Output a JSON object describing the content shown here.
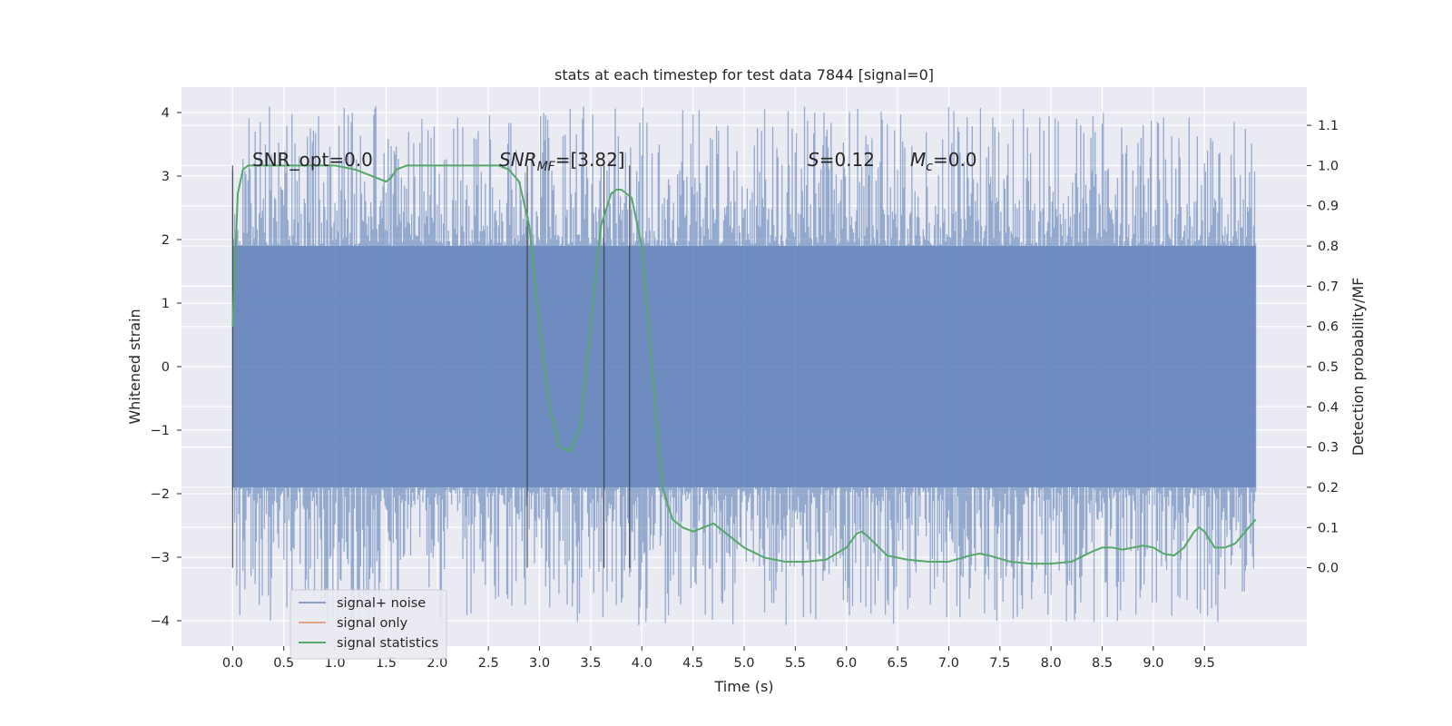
{
  "chart_data": {
    "type": "line",
    "title": "stats at each timestep for test data 7844 [signal=0]",
    "xlabel": "Time (s)",
    "ylabel": "Whitened strain",
    "y2label": "Detection probability/MF",
    "xlim": [
      -0.5,
      10.5
    ],
    "ylim": [
      -4.4,
      4.4
    ],
    "y2lim": [
      -0.195,
      1.195
    ],
    "x_ticks": [
      0.0,
      0.5,
      1.0,
      1.5,
      2.0,
      2.5,
      3.0,
      3.5,
      4.0,
      4.5,
      5.0,
      5.5,
      6.0,
      6.5,
      7.0,
      7.5,
      8.0,
      8.5,
      9.0,
      9.5
    ],
    "x_tick_labels": [
      "0.0",
      "0.5",
      "1.0",
      "1.5",
      "2.0",
      "2.5",
      "3.0",
      "3.5",
      "4.0",
      "4.5",
      "5.0",
      "5.5",
      "6.0",
      "6.5",
      "7.0",
      "7.5",
      "8.0",
      "8.5",
      "9.0",
      "9.5"
    ],
    "y_ticks": [
      -4,
      -3,
      -2,
      -1,
      0,
      1,
      2,
      3,
      4
    ],
    "y_tick_labels": [
      "−4",
      "−3",
      "−2",
      "−1",
      "0",
      "1",
      "2",
      "3",
      "4"
    ],
    "y2_ticks": [
      0.0,
      0.1,
      0.2,
      0.3,
      0.4,
      0.5,
      0.6,
      0.7,
      0.8,
      0.9,
      1.0,
      1.1
    ],
    "y2_tick_labels": [
      "0.0",
      "0.1",
      "0.2",
      "0.3",
      "0.4",
      "0.5",
      "0.6",
      "0.7",
      "0.8",
      "0.9",
      "1.0",
      "1.1"
    ],
    "grid": true,
    "legend_position": "bottom-left",
    "colors": {
      "background": "#eaeaf2",
      "grid": "#ffffff",
      "noise": "#4c72b0",
      "signal_only": "#dd8452",
      "statistics": "#55a868",
      "marker_lines": "#333333"
    },
    "series": [
      {
        "name": "signal+ noise",
        "axis": "left",
        "style": "dense noise band",
        "x_range": [
          0.0,
          10.0
        ],
        "core_band": [
          -1.9,
          1.9
        ],
        "peak_envelope": [
          -4.1,
          4.1
        ]
      },
      {
        "name": "signal only",
        "axis": "left",
        "x": [],
        "y": []
      },
      {
        "name": "signal statistics",
        "axis": "right",
        "x": [
          0.0,
          0.05,
          0.1,
          0.15,
          0.2,
          0.3,
          0.5,
          0.8,
          1.0,
          1.2,
          1.3,
          1.4,
          1.5,
          1.55,
          1.6,
          1.7,
          2.0,
          2.3,
          2.6,
          2.7,
          2.8,
          2.9,
          3.0,
          3.1,
          3.2,
          3.3,
          3.4,
          3.5,
          3.6,
          3.7,
          3.75,
          3.8,
          3.9,
          4.0,
          4.1,
          4.2,
          4.3,
          4.4,
          4.5,
          4.6,
          4.7,
          4.8,
          5.0,
          5.2,
          5.4,
          5.6,
          5.8,
          6.0,
          6.1,
          6.15,
          6.2,
          6.4,
          6.6,
          6.8,
          7.0,
          7.2,
          7.3,
          7.4,
          7.6,
          7.8,
          8.0,
          8.2,
          8.4,
          8.5,
          8.6,
          8.7,
          8.8,
          8.9,
          9.0,
          9.1,
          9.2,
          9.3,
          9.4,
          9.45,
          9.5,
          9.55,
          9.6,
          9.7,
          9.8,
          9.9,
          10.0
        ],
        "y": [
          0.6,
          0.93,
          0.99,
          1.0,
          1.0,
          1.0,
          1.0,
          1.0,
          1.0,
          0.99,
          0.98,
          0.97,
          0.96,
          0.97,
          0.99,
          1.0,
          1.0,
          1.0,
          1.0,
          0.99,
          0.96,
          0.85,
          0.6,
          0.4,
          0.3,
          0.29,
          0.35,
          0.6,
          0.85,
          0.93,
          0.94,
          0.94,
          0.92,
          0.8,
          0.5,
          0.2,
          0.12,
          0.1,
          0.09,
          0.1,
          0.11,
          0.09,
          0.05,
          0.025,
          0.015,
          0.015,
          0.02,
          0.05,
          0.085,
          0.09,
          0.08,
          0.03,
          0.02,
          0.015,
          0.015,
          0.03,
          0.035,
          0.03,
          0.015,
          0.01,
          0.01,
          0.015,
          0.04,
          0.05,
          0.05,
          0.045,
          0.05,
          0.055,
          0.05,
          0.035,
          0.03,
          0.05,
          0.09,
          0.1,
          0.09,
          0.07,
          0.05,
          0.05,
          0.06,
          0.09,
          0.12
        ]
      }
    ],
    "vertical_markers": [
      0.0,
      2.88,
      3.63,
      3.88
    ],
    "annotations": {
      "snr_opt": "SNR_opt=0.0",
      "snr_mf_base": "SNR",
      "snr_mf_sub": "MF",
      "snr_mf_value": "=[3.82]",
      "s_base": "S",
      "s_value": "=0.12",
      "mc_base": "M",
      "mc_sub": "c",
      "mc_value": "=0.0"
    }
  }
}
